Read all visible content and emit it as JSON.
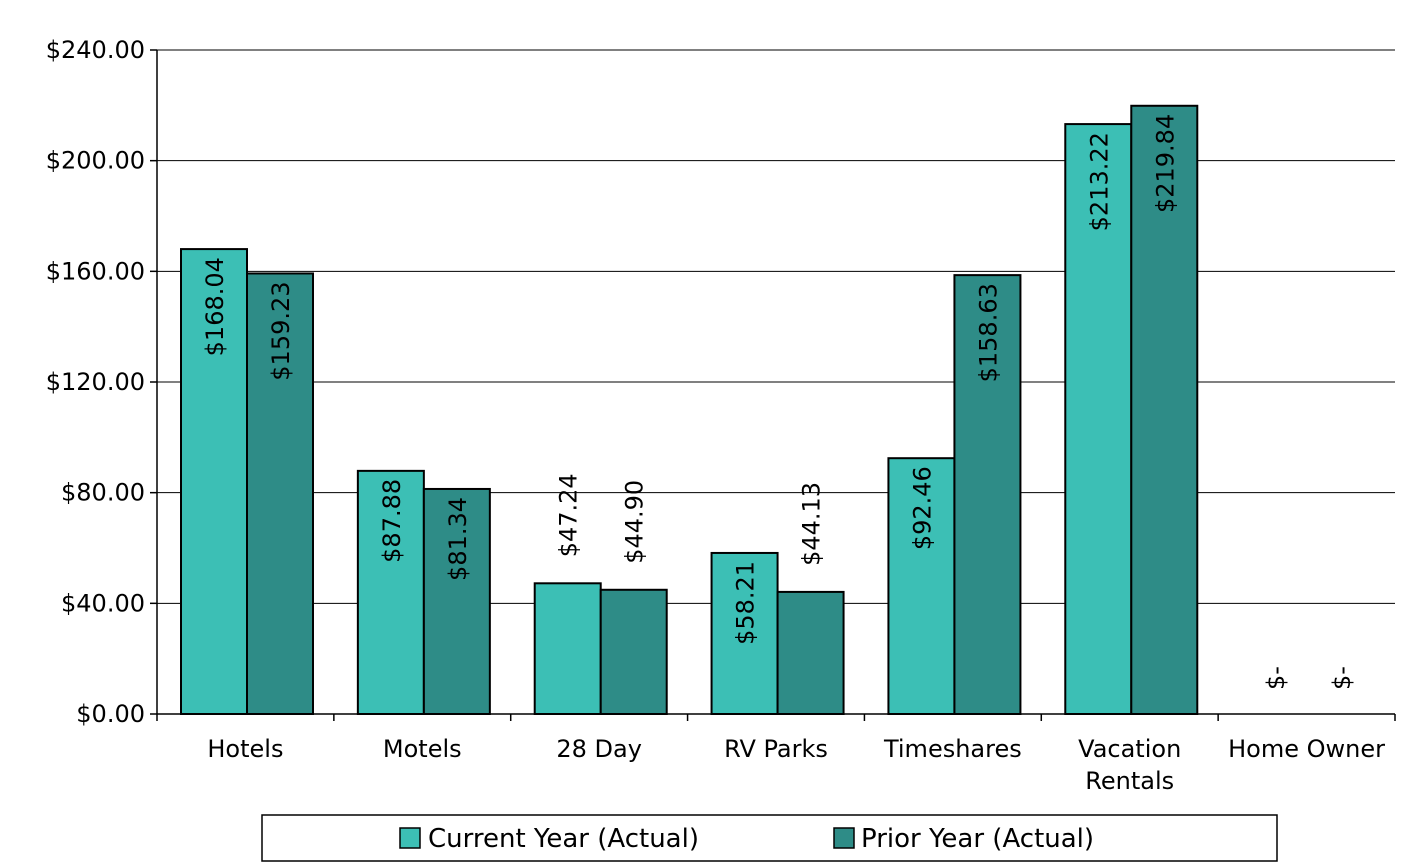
{
  "chart_data": {
    "type": "bar",
    "categories": [
      "Hotels",
      "Motels",
      "28 Day",
      "RV Parks",
      "Timeshares",
      "Vacation Rentals",
      "Home Owner"
    ],
    "category_lines": [
      [
        "Hotels"
      ],
      [
        "Motels"
      ],
      [
        "28 Day"
      ],
      [
        "RV Parks"
      ],
      [
        "Timeshares"
      ],
      [
        "Vacation",
        "Rentals"
      ],
      [
        "Home Owner"
      ]
    ],
    "series": [
      {
        "name": "Current Year (Actual)",
        "color": "#3cbfb5",
        "values": [
          168.04,
          87.88,
          47.24,
          58.21,
          92.46,
          213.22,
          0
        ],
        "labels": [
          "$168.04",
          "$87.88",
          "$47.24",
          "$58.21",
          "$92.46",
          "$213.22",
          "$-"
        ]
      },
      {
        "name": "Prior Year (Actual)",
        "color": "#2e8c87",
        "values": [
          159.23,
          81.34,
          44.9,
          44.13,
          158.63,
          219.84,
          0
        ],
        "labels": [
          "$159.23",
          "$81.34",
          "$44.90",
          "$44.13",
          "$158.63",
          "$219.84",
          "$-"
        ]
      }
    ],
    "ylim": [
      0,
      240
    ],
    "yticks": [
      0,
      40,
      80,
      120,
      160,
      200,
      240
    ],
    "ytick_labels": [
      "$0.00",
      "$40.00",
      "$80.00",
      "$120.00",
      "$160.00",
      "$200.00",
      "$240.00"
    ],
    "grid": true,
    "legend_position": "bottom"
  }
}
